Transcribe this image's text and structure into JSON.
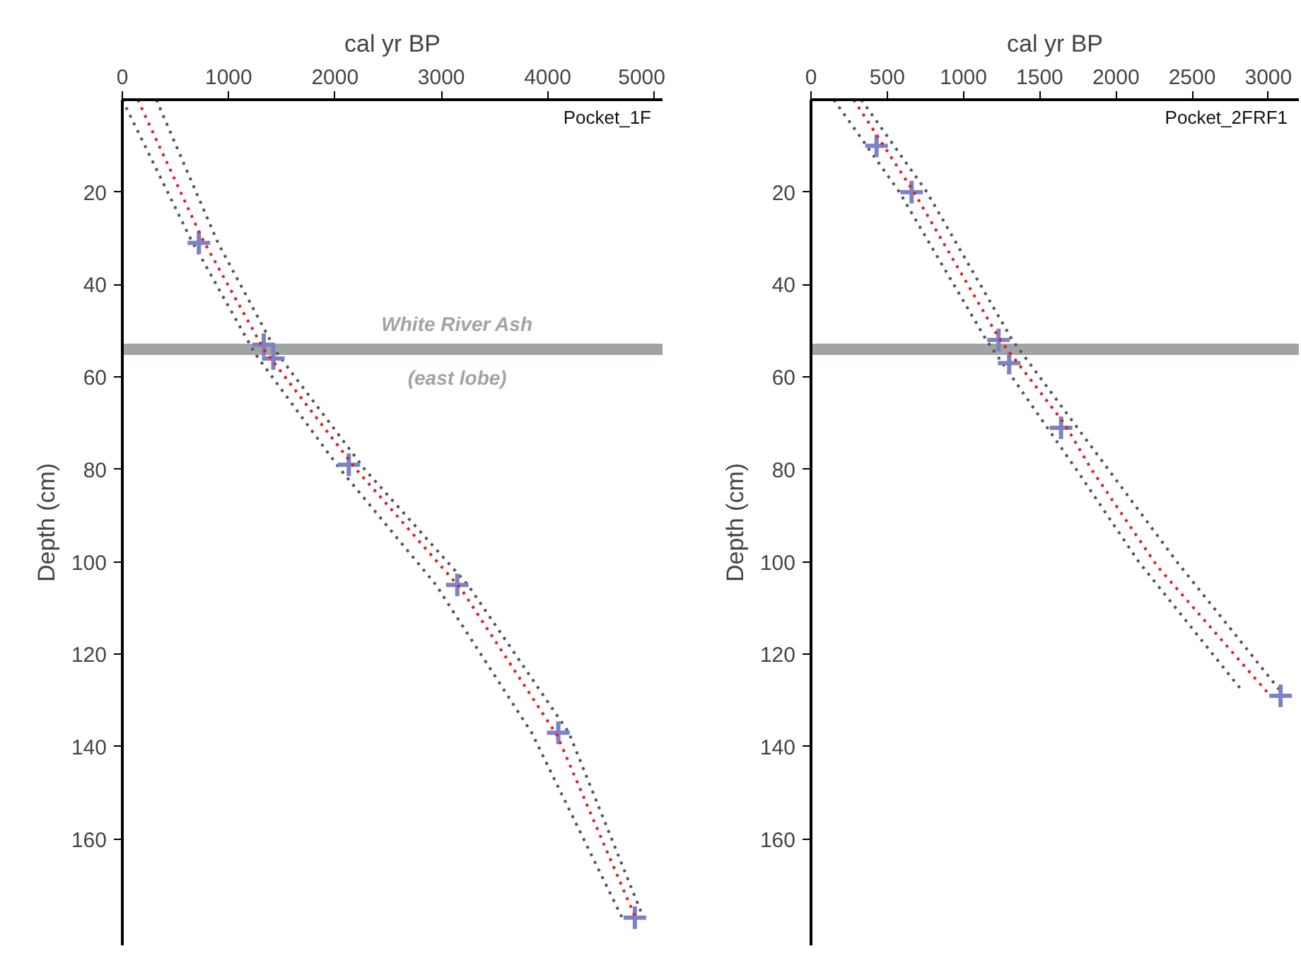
{
  "chart_data": [
    {
      "type": "line",
      "title": "Pocket_1F",
      "xlabel": "cal yr BP",
      "ylabel": "Depth (cm)",
      "xlim": [
        0,
        5080
      ],
      "xticks": [
        0,
        1000,
        2000,
        3000,
        4000,
        5000
      ],
      "ylim": [
        183,
        0
      ],
      "yticks": [
        20,
        40,
        60,
        80,
        100,
        120,
        140,
        160
      ],
      "grid": false,
      "series": [
        {
          "color": "#555555",
          "line_style": "dotted",
          "x": [
            0,
            640,
            1250,
            2050,
            2950,
            3850,
            4700
          ],
          "values": [
            0,
            30,
            55,
            80,
            105,
            137,
            177
          ]
        },
        {
          "color": "#555555",
          "line_style": "dotted",
          "x": [
            320,
            900,
            1460,
            2280,
            3250,
            4200,
            4900
          ],
          "values": [
            0,
            31,
            55,
            80,
            105,
            137,
            177
          ]
        },
        {
          "type": "scatter",
          "color": "#7b83c4",
          "marker": "cross",
          "x": [
            720,
            1330,
            1420,
            2130,
            3150,
            4100,
            4820
          ],
          "values": [
            31,
            53,
            56,
            79,
            105,
            137,
            177
          ]
        },
        {
          "color": "#e02020",
          "line_style": "dotted",
          "x": [
            145,
            750,
            1330,
            2200,
            3190,
            4090,
            4820
          ],
          "values": [
            0,
            30,
            54,
            80,
            106,
            137.6,
            176.7
          ]
        }
      ],
      "ref_lines": [
        {
          "axis": "y",
          "value": 54,
          "color": "#a0a4a4",
          "label": "White River Ash"
        }
      ],
      "annotations": [
        "(east lobe)"
      ]
    },
    {
      "type": "line",
      "title": "Pocket_2FRF1",
      "xlabel": "cal yr BP",
      "ylabel": "Depth (cm)",
      "xlim": [
        0,
        3200
      ],
      "xticks": [
        0,
        500,
        1000,
        1500,
        2000,
        2500,
        3000
      ],
      "ylim": [
        183,
        0
      ],
      "yticks": [
        20,
        40,
        60,
        80,
        100,
        120,
        140,
        160
      ],
      "grid": false,
      "series": [
        {
          "color": "#555555",
          "line_style": "dotted",
          "x": [
            150,
            580,
            1150,
            1740,
            2150,
            2830
          ],
          "values": [
            0,
            20,
            52,
            80,
            100,
            128
          ]
        },
        {
          "color": "#555555",
          "line_style": "dotted",
          "x": [
            330,
            760,
            1320,
            1950,
            2400,
            3080
          ],
          "values": [
            0,
            20,
            52,
            80,
            100,
            128
          ]
        },
        {
          "type": "scatter",
          "color": "#7b83c4",
          "marker": "cross",
          "x": [
            430,
            660,
            1230,
            1300,
            1640,
            3080
          ],
          "values": [
            10,
            20,
            52,
            57,
            71,
            129
          ]
        },
        {
          "color": "#e02020",
          "line_style": "dotted",
          "x": [
            280,
            675,
            1240,
            1660,
            1840,
            2270,
            3000
          ],
          "values": [
            0,
            20,
            52,
            70,
            80,
            100.9,
            128.5
          ]
        }
      ],
      "ref_lines": [
        {
          "axis": "y",
          "value": 54,
          "color": "#a0a4a4"
        }
      ]
    }
  ]
}
